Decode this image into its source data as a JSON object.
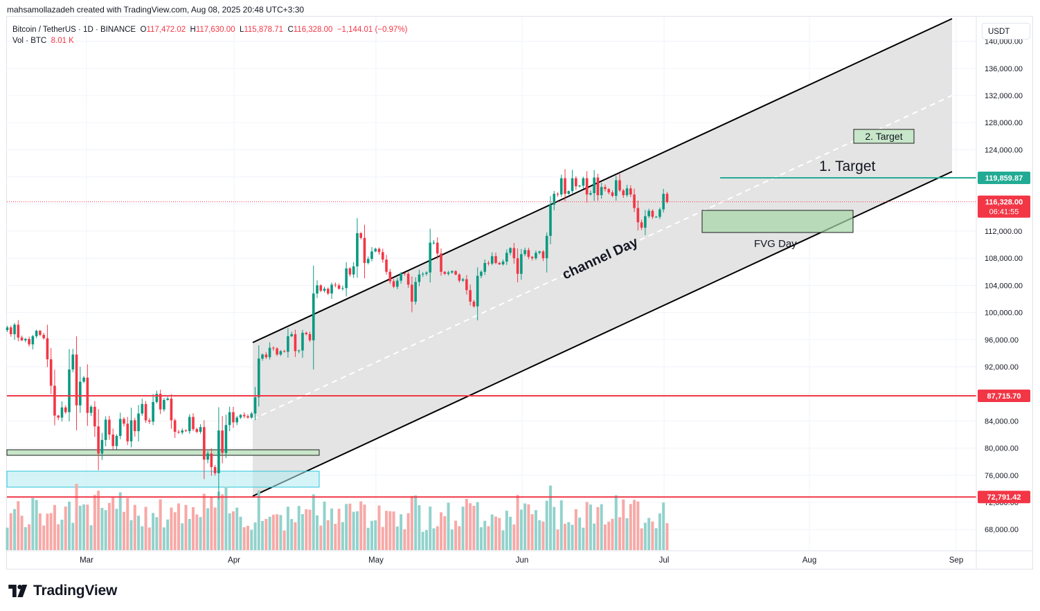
{
  "caption": "mahsamollazadeh created with TradingView.com, Aug 08, 2025 20:48 UTC+3:30",
  "legend": {
    "symbol": "Bitcoin / TetherUS · 1D · BINANCE",
    "o_label": "O",
    "o": "117,472.02",
    "h_label": "H",
    "h": "117,630.00",
    "l_label": "L",
    "l": "115,878.71",
    "c_label": "C",
    "c": "116,328.00",
    "change": "−1,144.01 (−0.97%)",
    "vol_label": "Vol · BTC",
    "vol": "8.01 K"
  },
  "currency_button": "USDT",
  "logo_text": "TradingView",
  "colors": {
    "up": "#089981",
    "down": "#f23645",
    "vol_up": "#92d2cc",
    "vol_down": "#f7a9a7",
    "teal_line": "#22ab94",
    "red_line": "#f23645",
    "channel_fill": "#e3e3e3"
  },
  "chart_data": {
    "type": "candlestick",
    "symbol": "BTCUSDT",
    "timeframe": "1D",
    "x_labels": [
      "Mar",
      "Apr",
      "May",
      "Jun",
      "Jul",
      "Aug",
      "Sep"
    ],
    "y_ticks": [
      "140,000.00",
      "136,000.00",
      "132,000.00",
      "128,000.00",
      "124,000.00",
      "120,000.00",
      "116,000.00",
      "112,000.00",
      "108,000.00",
      "104,000.00",
      "100,000.00",
      "96,000.00",
      "92,000.00",
      "88,000.00",
      "84,000.00",
      "80,000.00",
      "76,000.00",
      "72,000.00",
      "68,000.00"
    ],
    "ylim": [
      64000,
      144000
    ],
    "closes": [
      97800,
      96800,
      98200,
      96300,
      95900,
      96100,
      95300,
      96500,
      97300,
      96700,
      96200,
      93100,
      89200,
      84800,
      84500,
      86000,
      85300,
      91600,
      93800,
      86300,
      89800,
      90400,
      85200,
      86100,
      83200,
      79200,
      81200,
      84200,
      82000,
      80300,
      81800,
      84300,
      83600,
      81000,
      84100,
      82500,
      85100,
      86500,
      84100,
      83900,
      86800,
      88000,
      85700,
      87100,
      87300,
      84100,
      82400,
      82300,
      82600,
      82500,
      84600,
      82800,
      82400,
      83100,
      78300,
      79200,
      77200,
      76300,
      82600,
      79300,
      83400,
      85300,
      83800,
      84500,
      84900,
      84700,
      84500,
      85100,
      87500,
      93200,
      93800,
      93400,
      94800,
      94700,
      93800,
      94300,
      94200,
      96500,
      96800,
      94300,
      94400,
      97000,
      96800,
      95900,
      102800,
      104000,
      103200,
      103500,
      102800,
      104100,
      104000,
      103500,
      103600,
      106500,
      105600,
      106800,
      111700,
      111000,
      107300,
      107900,
      109000,
      109400,
      108900,
      107800,
      106000,
      104600,
      103800,
      104700,
      105800,
      105700,
      104100,
      101600,
      104500,
      105600,
      105700,
      105900,
      110300,
      110300,
      108700,
      106000,
      105700,
      105900,
      106100,
      105600,
      104700,
      104900,
      103300,
      101600,
      100900,
      105400,
      106000,
      107300,
      107200,
      108300,
      107300,
      107100,
      107500,
      108800,
      109500,
      108000,
      105700,
      108600,
      109200,
      108200,
      108000,
      108800,
      109000,
      108000,
      111300,
      115900,
      117500,
      117400,
      119800,
      117500,
      117900,
      119800,
      118600,
      118700,
      119800,
      117400,
      117600,
      119900,
      117300,
      118500,
      118200,
      117700,
      117200,
      119500,
      118000,
      117300,
      118300,
      117400,
      115400,
      113300,
      112500,
      114200,
      115000,
      114100,
      114100,
      115200,
      117500,
      116300
    ],
    "annotations": {
      "levels": [
        {
          "label": "119,859.87",
          "value": 119859.87,
          "color": "#22ab94"
        },
        {
          "label": "87,715.70",
          "value": 87715.7,
          "color": "#f23645"
        },
        {
          "label": "72,791.42",
          "value": 72791.42,
          "color": "#f23645"
        }
      ],
      "last_price_label": "116,328.00",
      "countdown": "06:41:55",
      "texts": [
        "1. Target",
        "2. Target",
        "channel Day",
        "FVG Day"
      ]
    }
  }
}
